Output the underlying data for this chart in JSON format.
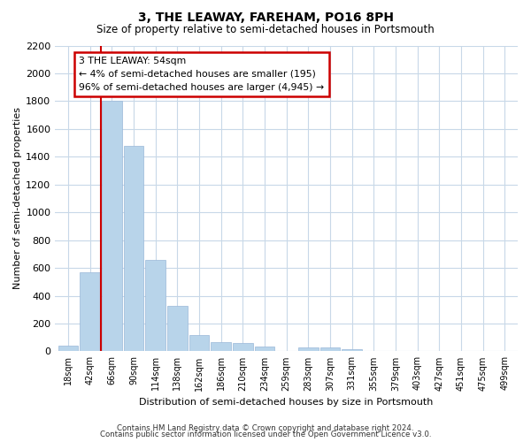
{
  "title": "3, THE LEAWAY, FAREHAM, PO16 8PH",
  "subtitle": "Size of property relative to semi-detached houses in Portsmouth",
  "xlabel": "Distribution of semi-detached houses by size in Portsmouth",
  "ylabel": "Number of semi-detached properties",
  "bar_labels": [
    "18sqm",
    "42sqm",
    "66sqm",
    "90sqm",
    "114sqm",
    "138sqm",
    "162sqm",
    "186sqm",
    "210sqm",
    "234sqm",
    "259sqm",
    "283sqm",
    "307sqm",
    "331sqm",
    "355sqm",
    "379sqm",
    "403sqm",
    "427sqm",
    "451sqm",
    "475sqm",
    "499sqm"
  ],
  "bar_values": [
    40,
    570,
    1800,
    1480,
    660,
    325,
    120,
    65,
    60,
    35,
    0,
    25,
    25,
    15,
    0,
    0,
    0,
    0,
    0,
    0,
    0
  ],
  "bar_color": "#b8d4ea",
  "bar_edge_color": "#9ab8d8",
  "marker_line_color": "#cc0000",
  "annotation_text_line1": "3 THE LEAWAY: 54sqm",
  "annotation_text_line2": "← 4% of semi-detached houses are smaller (195)",
  "annotation_text_line3": "96% of semi-detached houses are larger (4,945) →",
  "annotation_box_color": "#cc0000",
  "ylim": [
    0,
    2200
  ],
  "yticks": [
    0,
    200,
    400,
    600,
    800,
    1000,
    1200,
    1400,
    1600,
    1800,
    2000,
    2200
  ],
  "footnote1": "Contains HM Land Registry data © Crown copyright and database right 2024.",
  "footnote2": "Contains public sector information licensed under the Open Government Licence v3.0.",
  "background_color": "#ffffff",
  "grid_color": "#c8d8e8"
}
